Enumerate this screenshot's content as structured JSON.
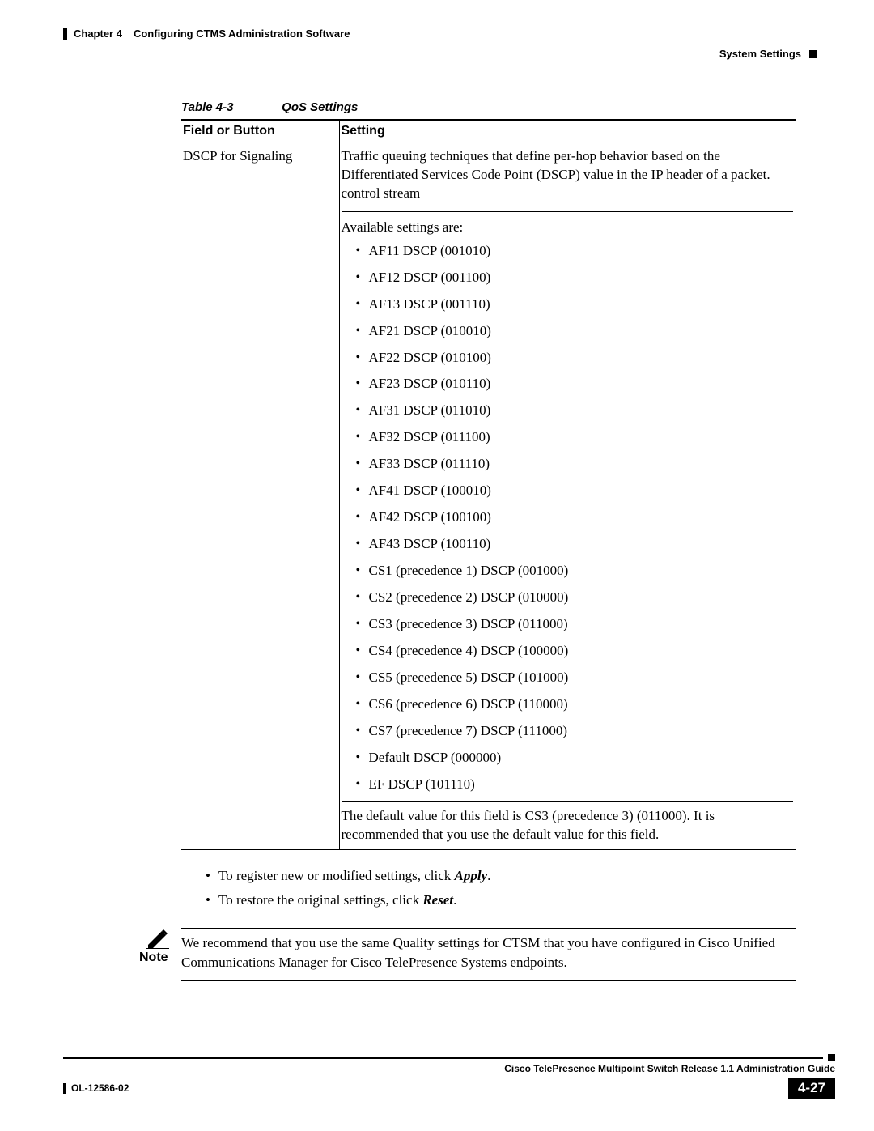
{
  "header": {
    "chapter_label": "Chapter 4",
    "chapter_title": "Configuring CTMS Administration Software",
    "section": "System Settings"
  },
  "table": {
    "caption_label": "Table 4-3",
    "caption_title": "QoS Settings",
    "columns": [
      "Field or Button",
      "Setting"
    ],
    "field_name": "DSCP for Signaling",
    "description": "Traffic queuing techniques that define per-hop behavior based on the Differentiated Services Code Point (DSCP) value in the IP header of a packet. control stream",
    "available_label": "Available settings are:",
    "options": [
      "AF11 DSCP (001010)",
      "AF12 DSCP (001100)",
      "AF13 DSCP (001110)",
      "AF21 DSCP (010010)",
      "AF22 DSCP (010100)",
      "AF23 DSCP (010110)",
      "AF31 DSCP (011010)",
      "AF32 DSCP (011100)",
      "AF33 DSCP (011110)",
      "AF41 DSCP (100010)",
      "AF42 DSCP (100100)",
      "AF43 DSCP (100110)",
      "CS1 (precedence 1) DSCP (001000)",
      "CS2 (precedence 2) DSCP (010000)",
      "CS3 (precedence 3) DSCP (011000)",
      "CS4 (precedence 4) DSCP (100000)",
      "CS5 (precedence 5) DSCP (101000)",
      "CS6 (precedence 6) DSCP (110000)",
      "CS7 (precedence 7) DSCP (111000)",
      "Default DSCP (000000)",
      "EF DSCP (101110)"
    ],
    "footnote": "The default value for this field is CS3 (precedence 3) (011000). It is recommended that you use the default value for this field."
  },
  "post_table": {
    "items": [
      {
        "prefix": "To register new or modified settings, click ",
        "bold": "Apply",
        "suffix": "."
      },
      {
        "prefix": "To restore the original settings, click ",
        "bold": "Reset",
        "suffix": "."
      }
    ]
  },
  "note": {
    "label": "Note",
    "text": "We recommend that you use the same Quality settings for CTSM that you have configured in Cisco Unified Communications Manager for Cisco TelePresence Systems endpoints."
  },
  "footer": {
    "guide_title": "Cisco TelePresence Multipoint Switch Release 1.1 Administration Guide",
    "doc_id": "OL-12586-02",
    "page_number": "4-27"
  }
}
